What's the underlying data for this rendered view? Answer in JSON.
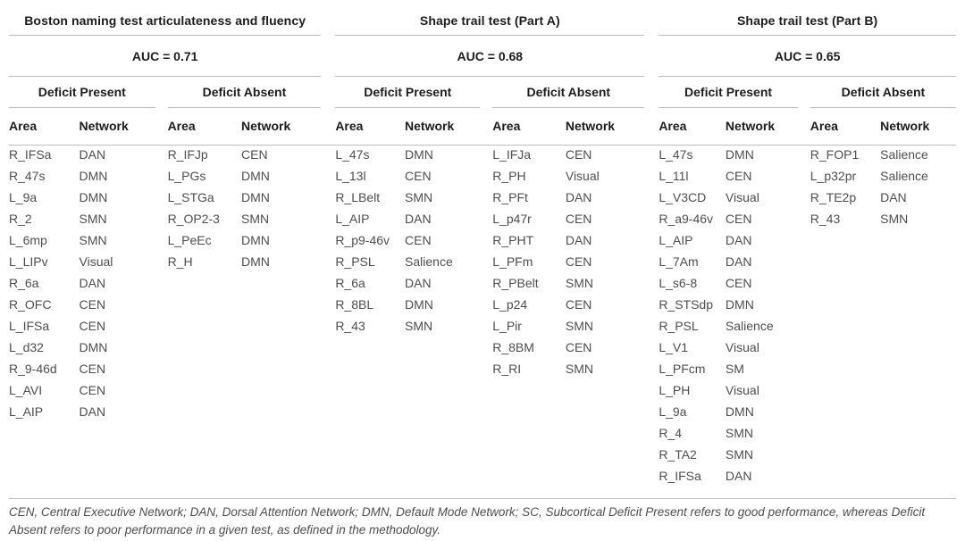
{
  "columns": {
    "area": "Area",
    "network": "Network"
  },
  "sections": [
    {
      "title": "Boston naming test articulateness and fluency",
      "auc": "AUC = 0.71",
      "groups": [
        {
          "label": "Deficit Present",
          "rows": [
            {
              "area": "R_IFSa",
              "network": "DAN"
            },
            {
              "area": "R_47s",
              "network": "DMN"
            },
            {
              "area": "L_9a",
              "network": "DMN"
            },
            {
              "area": "R_2",
              "network": "SMN"
            },
            {
              "area": "L_6mp",
              "network": "SMN"
            },
            {
              "area": "L_LIPv",
              "network": "Visual"
            },
            {
              "area": "R_6a",
              "network": "DAN"
            },
            {
              "area": "R_OFC",
              "network": "CEN"
            },
            {
              "area": "L_IFSa",
              "network": "CEN"
            },
            {
              "area": "L_d32",
              "network": "DMN"
            },
            {
              "area": "R_9-46d",
              "network": "CEN"
            },
            {
              "area": "L_AVI",
              "network": "CEN"
            },
            {
              "area": "L_AIP",
              "network": "DAN"
            }
          ]
        },
        {
          "label": "Deficit Absent",
          "rows": [
            {
              "area": "R_IFJp",
              "network": "CEN"
            },
            {
              "area": "L_PGs",
              "network": "DMN"
            },
            {
              "area": "L_STGa",
              "network": "DMN"
            },
            {
              "area": "R_OP2-3",
              "network": "SMN"
            },
            {
              "area": "L_PeEc",
              "network": "DMN"
            },
            {
              "area": "R_H",
              "network": "DMN"
            }
          ]
        }
      ]
    },
    {
      "title": "Shape trail test (Part A)",
      "auc": "AUC = 0.68",
      "groups": [
        {
          "label": "Deficit Present",
          "rows": [
            {
              "area": "L_47s",
              "network": "DMN"
            },
            {
              "area": "L_13l",
              "network": "CEN"
            },
            {
              "area": "R_LBelt",
              "network": "SMN"
            },
            {
              "area": "L_AIP",
              "network": "DAN"
            },
            {
              "area": "R_p9-46v",
              "network": "CEN"
            },
            {
              "area": "R_PSL",
              "network": "Salience"
            },
            {
              "area": "R_6a",
              "network": "DAN"
            },
            {
              "area": "R_8BL",
              "network": "DMN"
            },
            {
              "area": "R_43",
              "network": "SMN"
            }
          ]
        },
        {
          "label": "Deficit Absent",
          "rows": [
            {
              "area": "L_IFJa",
              "network": "CEN"
            },
            {
              "area": "R_PH",
              "network": "Visual"
            },
            {
              "area": "R_PFt",
              "network": "DAN"
            },
            {
              "area": "L_p47r",
              "network": "CEN"
            },
            {
              "area": "R_PHT",
              "network": "DAN"
            },
            {
              "area": "L_PFm",
              "network": "CEN"
            },
            {
              "area": "R_PBelt",
              "network": "SMN"
            },
            {
              "area": "L_p24",
              "network": "CEN"
            },
            {
              "area": "L_Pir",
              "network": "SMN"
            },
            {
              "area": "R_8BM",
              "network": "CEN"
            },
            {
              "area": "R_RI",
              "network": "SMN"
            }
          ]
        }
      ]
    },
    {
      "title": "Shape trail test (Part B)",
      "auc": "AUC = 0.65",
      "groups": [
        {
          "label": "Deficit Present",
          "rows": [
            {
              "area": "L_47s",
              "network": "DMN"
            },
            {
              "area": "L_11l",
              "network": "CEN"
            },
            {
              "area": "L_V3CD",
              "network": "Visual"
            },
            {
              "area": "R_a9-46v",
              "network": "CEN"
            },
            {
              "area": "L_AIP",
              "network": "DAN"
            },
            {
              "area": "L_7Am",
              "network": "DAN"
            },
            {
              "area": "L_s6-8",
              "network": "CEN"
            },
            {
              "area": "R_STSdp",
              "network": "DMN"
            },
            {
              "area": "R_PSL",
              "network": "Salience"
            },
            {
              "area": "L_V1",
              "network": "Visual"
            },
            {
              "area": "L_PFcm",
              "network": "SM"
            },
            {
              "area": "L_PH",
              "network": "Visual"
            },
            {
              "area": "L_9a",
              "network": "DMN"
            },
            {
              "area": "R_4",
              "network": "SMN"
            },
            {
              "area": "R_TA2",
              "network": "SMN"
            },
            {
              "area": "R_IFSa",
              "network": "DAN"
            }
          ]
        },
        {
          "label": "Deficit Absent",
          "rows": [
            {
              "area": "R_FOP1",
              "network": "Salience"
            },
            {
              "area": "L_p32pr",
              "network": "Salience"
            },
            {
              "area": "R_TE2p",
              "network": "DAN"
            },
            {
              "area": "R_43",
              "network": "SMN"
            }
          ]
        }
      ]
    }
  ],
  "footnote": "CEN, Central Executive Network; DAN, Dorsal Attention Network; DMN, Default Mode Network; SC, Subcortical Deficit Present refers to good performance, whereas Deficit Absent refers to poor performance in a given test, as defined in the methodology."
}
